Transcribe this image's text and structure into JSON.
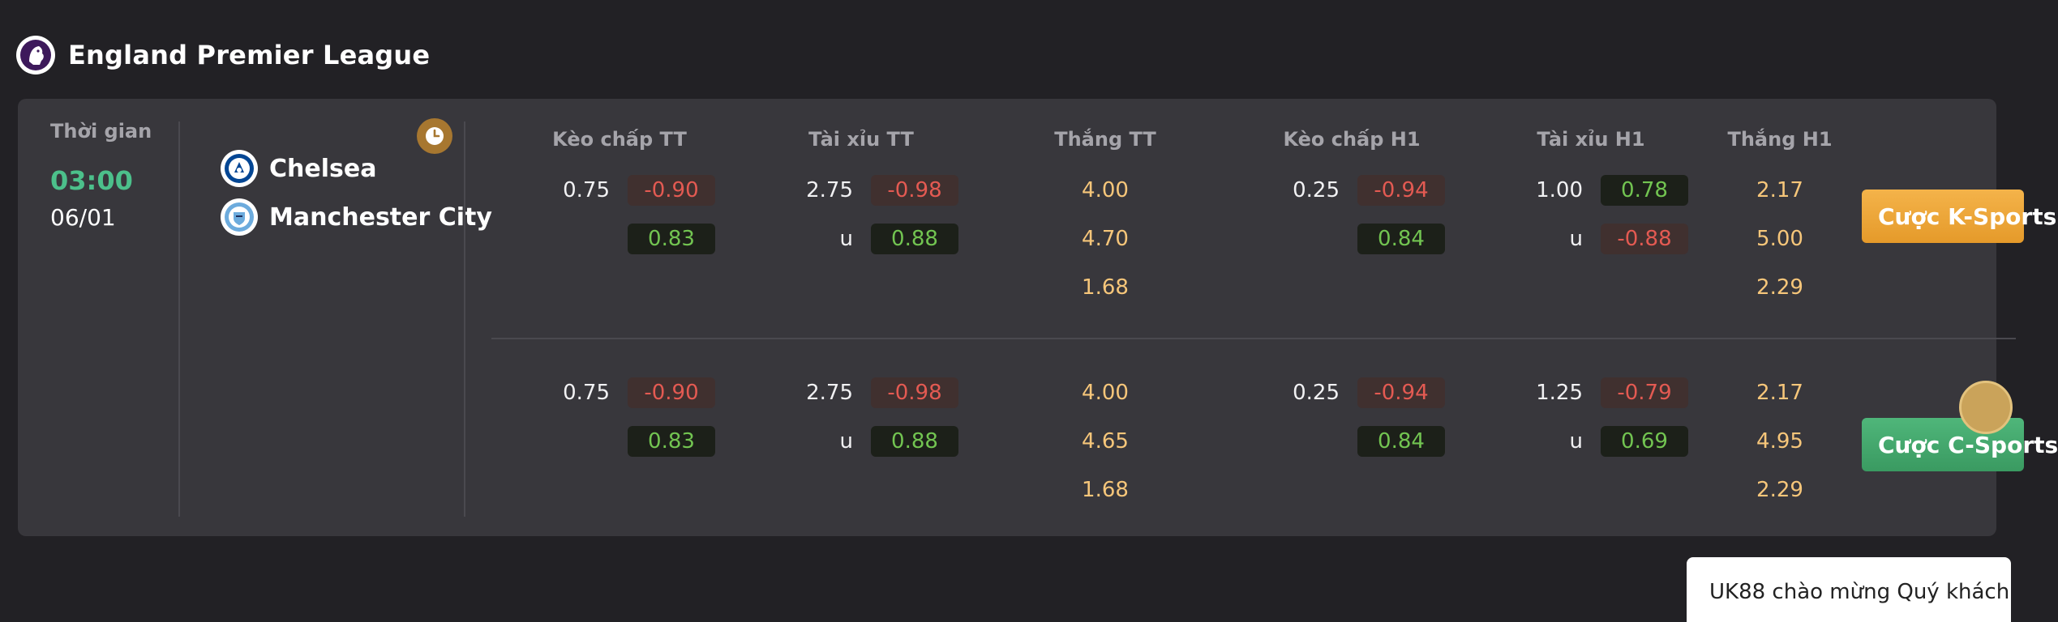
{
  "league": {
    "name": "England Premier League",
    "logo_icon": "premier-league-lion-icon"
  },
  "match": {
    "time_label": "Thời gian",
    "time": "03:00",
    "date": "06/01",
    "home_team": {
      "name": "Chelsea",
      "icon": "chelsea-crest-icon"
    },
    "away_team": {
      "name": "Manchester City",
      "icon": "man-city-crest-icon"
    },
    "clock_icon": "clock-icon"
  },
  "columns": {
    "handicap_ft": "Kèo chấp TT",
    "ou_ft": "Tài xỉu TT",
    "win_ft": "Thắng TT",
    "handicap_h1": "Kèo chấp H1",
    "ou_h1": "Tài xỉu H1",
    "win_h1": "Thắng H1"
  },
  "markets": [
    {
      "handicap_ft": {
        "line": "0.75",
        "home": "-0.90",
        "away": "0.83"
      },
      "ou_ft": {
        "line": "2.75",
        "over": "-0.98",
        "under_label": "u",
        "under": "0.88"
      },
      "win_ft": {
        "home": "4.00",
        "draw": "4.70",
        "away": "1.68"
      },
      "handicap_h1": {
        "line": "0.25",
        "home": "-0.94",
        "away": "0.84"
      },
      "ou_h1": {
        "line": "1.00",
        "over": "0.78",
        "under_label": "u",
        "under": "-0.88"
      },
      "win_h1": {
        "home": "2.17",
        "draw": "5.00",
        "away": "2.29"
      },
      "bet_button": "Cược K-Sports"
    },
    {
      "handicap_ft": {
        "line": "0.75",
        "home": "-0.90",
        "away": "0.83"
      },
      "ou_ft": {
        "line": "2.75",
        "over": "-0.98",
        "under_label": "u",
        "under": "0.88"
      },
      "win_ft": {
        "home": "4.00",
        "draw": "4.65",
        "away": "1.68"
      },
      "handicap_h1": {
        "line": "0.25",
        "home": "-0.94",
        "away": "0.84"
      },
      "ou_h1": {
        "line": "1.25",
        "over": "-0.79",
        "under_label": "u",
        "under": "0.69"
      },
      "win_h1": {
        "home": "2.17",
        "draw": "4.95",
        "away": "2.29"
      },
      "bet_button": "Cược C-Sports"
    }
  ],
  "chat": {
    "text": "UK88 chào mừng Quý khách"
  },
  "colors": {
    "background": "#222125",
    "card": "#38373c",
    "time_green": "#4cc08b",
    "negative": "#e35a52",
    "positive": "#72c451",
    "win_odds": "#f6c67a",
    "bet_k": "#f0aa3e",
    "bet_c": "#45a96d"
  }
}
